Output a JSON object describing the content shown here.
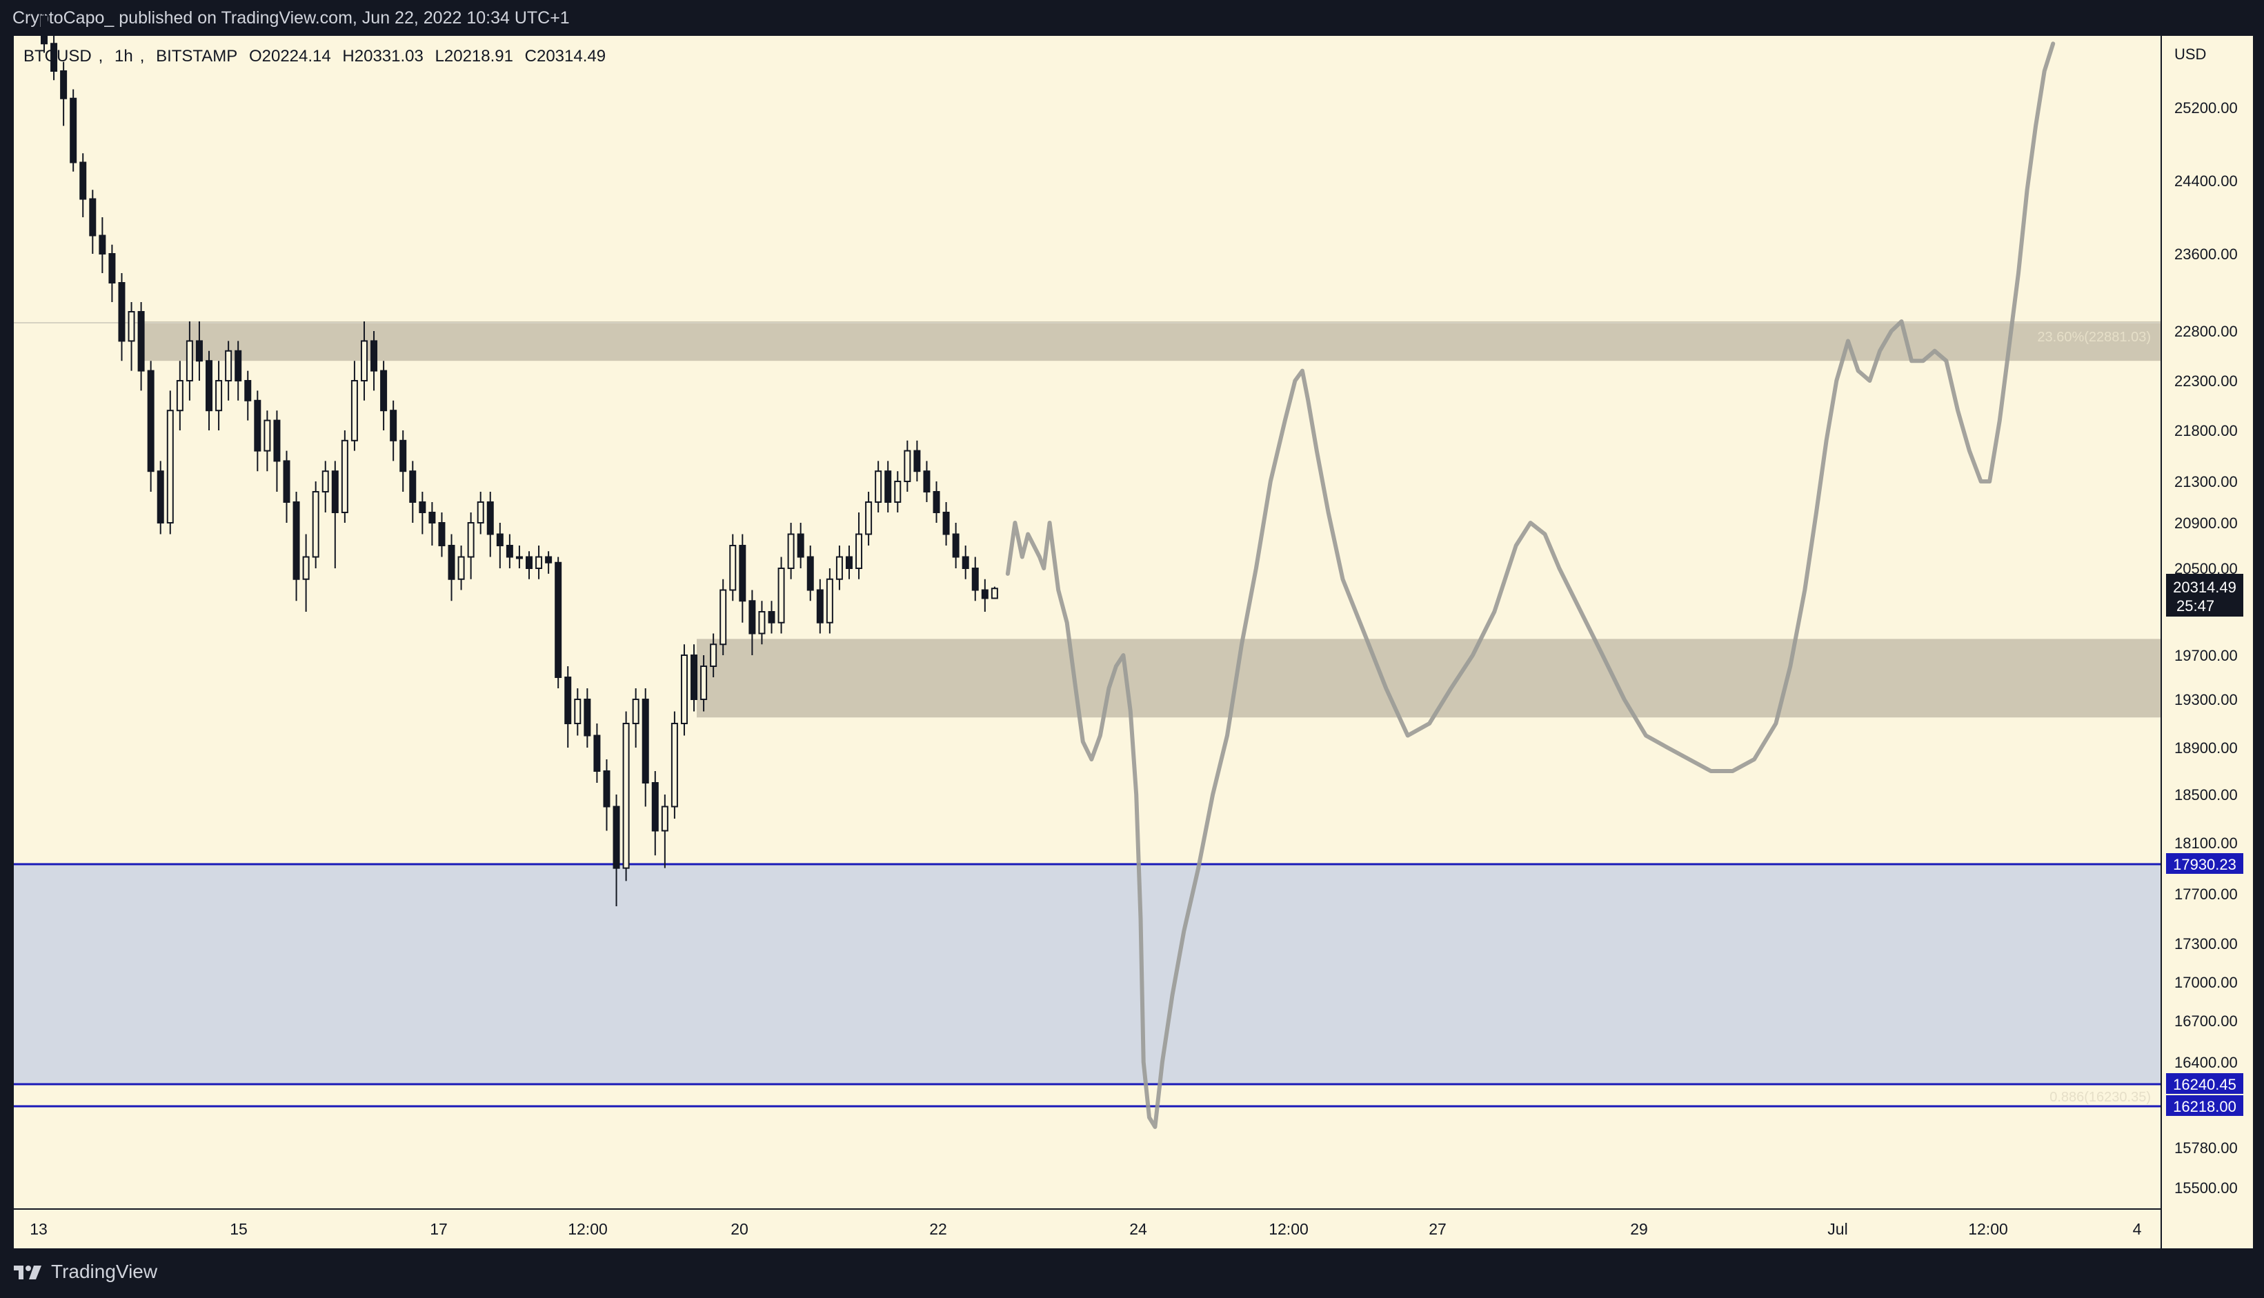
{
  "header": {
    "publisher": "CryptoCapo_",
    "published_text": "published on TradingView.com, Jun 22, 2022 10:34 UTC+1"
  },
  "footer": {
    "brand": "TradingView",
    "logo_icon": "tradingview-logo-icon"
  },
  "colors": {
    "background": "#fcf6de",
    "zone_grey": "#cbc4b0",
    "support_blue": "#d3d9e3",
    "blue_line": "#1a1ab8",
    "candle": "#131722",
    "path": "#9a9a96"
  },
  "chart_data": {
    "type": "candlestick",
    "symbol": "BTCUSD",
    "interval": "1h",
    "exchange": "BITSTAMP",
    "ohlc": {
      "open": "O20224.14",
      "high": "H20331.03",
      "low": "L20218.91",
      "close": "C20314.49"
    },
    "currency": "USD",
    "y_ticks": [
      "25200.00",
      "24400.00",
      "23600.00",
      "22800.00",
      "22300.00",
      "21800.00",
      "21300.00",
      "20900.00",
      "20500.00",
      "19700.00",
      "19300.00",
      "18900.00",
      "18500.00",
      "18100.00",
      "17700.00",
      "17300.00",
      "17000.00",
      "16700.00",
      "16400.00",
      "15780.00",
      "15500.00"
    ],
    "x_ticks": [
      "13",
      "15",
      "17",
      "12:00",
      "20",
      "22",
      "24",
      "12:00",
      "27",
      "29",
      "Jul",
      "12:00",
      "4"
    ],
    "last_price": {
      "value": "20314.49",
      "countdown": "25:47"
    },
    "price_badges": [
      "17930.23",
      "16240.45",
      "16218.00"
    ],
    "horizontal_lines": [
      17930.23,
      16240.45,
      16218.0
    ],
    "zones": [
      {
        "name": "resistance-zone",
        "from": 22500,
        "to": 22900
      },
      {
        "name": "mid-zone",
        "from": 19150,
        "to": 19850
      },
      {
        "name": "support-zone",
        "from": 16240.45,
        "to": 17930.23
      }
    ],
    "fib_labels": [
      "23.60%(22881.03)",
      "0.886(16230.35)"
    ],
    "candles": [
      [
        0,
        26200,
        25900,
        26250,
        25800
      ],
      [
        1,
        25900,
        25600,
        26000,
        25500
      ],
      [
        2,
        25600,
        25300,
        25700,
        25000
      ],
      [
        3,
        25300,
        24600,
        25400,
        24500
      ],
      [
        4,
        24600,
        24200,
        24700,
        24000
      ],
      [
        5,
        24200,
        23800,
        24300,
        23600
      ],
      [
        6,
        23800,
        23600,
        24000,
        23400
      ],
      [
        7,
        23600,
        23300,
        23700,
        23100
      ],
      [
        8,
        23300,
        22700,
        23400,
        22500
      ],
      [
        9,
        22700,
        23000,
        23100,
        22400
      ],
      [
        10,
        23000,
        22400,
        23100,
        22200
      ],
      [
        11,
        22400,
        21400,
        22500,
        21200
      ],
      [
        12,
        21400,
        20900,
        21500,
        20800
      ],
      [
        13,
        20900,
        22000,
        22200,
        20800
      ],
      [
        14,
        22000,
        22300,
        22500,
        21800
      ],
      [
        15,
        22300,
        22700,
        22900,
        22100
      ],
      [
        16,
        22700,
        22500,
        22900,
        22300
      ],
      [
        17,
        22500,
        22000,
        22600,
        21800
      ],
      [
        18,
        22000,
        22300,
        22500,
        21800
      ],
      [
        19,
        22300,
        22600,
        22700,
        22100
      ],
      [
        20,
        22600,
        22300,
        22700,
        22100
      ],
      [
        21,
        22300,
        22100,
        22400,
        21900
      ],
      [
        22,
        22100,
        21600,
        22200,
        21400
      ],
      [
        23,
        21600,
        21900,
        22000,
        21400
      ],
      [
        24,
        21900,
        21500,
        22000,
        21200
      ],
      [
        25,
        21500,
        21100,
        21600,
        20900
      ],
      [
        26,
        21100,
        20400,
        21200,
        20200
      ],
      [
        27,
        20400,
        20600,
        20800,
        20100
      ],
      [
        28,
        20600,
        21200,
        21300,
        20500
      ],
      [
        29,
        21200,
        21400,
        21500,
        21000
      ],
      [
        30,
        21400,
        21000,
        21500,
        20500
      ],
      [
        31,
        21000,
        21700,
        21800,
        20900
      ],
      [
        32,
        21700,
        22300,
        22500,
        21600
      ],
      [
        33,
        22300,
        22700,
        22900,
        22100
      ],
      [
        34,
        22700,
        22400,
        22800,
        22200
      ],
      [
        35,
        22400,
        22000,
        22500,
        21800
      ],
      [
        36,
        22000,
        21700,
        22100,
        21500
      ],
      [
        37,
        21700,
        21400,
        21800,
        21200
      ],
      [
        38,
        21400,
        21100,
        21500,
        20900
      ],
      [
        39,
        21100,
        21000,
        21200,
        20800
      ],
      [
        40,
        21000,
        20900,
        21100,
        20700
      ],
      [
        41,
        20900,
        20700,
        21000,
        20600
      ],
      [
        42,
        20700,
        20400,
        20800,
        20200
      ],
      [
        43,
        20400,
        20600,
        20700,
        20300
      ],
      [
        44,
        20600,
        20900,
        21000,
        20400
      ],
      [
        45,
        20900,
        21100,
        21200,
        20800
      ],
      [
        46,
        21100,
        20800,
        21200,
        20600
      ],
      [
        47,
        20800,
        20700,
        20900,
        20500
      ],
      [
        48,
        20700,
        20600,
        20800,
        20500
      ],
      [
        49,
        20600,
        20600,
        20700,
        20500
      ],
      [
        50,
        20600,
        20500,
        20650,
        20400
      ],
      [
        51,
        20500,
        20600,
        20700,
        20400
      ],
      [
        52,
        20600,
        20550,
        20650,
        20450
      ],
      [
        53,
        20550,
        19500,
        20600,
        19400
      ],
      [
        54,
        19500,
        19100,
        19600,
        18900
      ],
      [
        55,
        19100,
        19300,
        19400,
        19000
      ],
      [
        56,
        19300,
        19000,
        19400,
        18900
      ],
      [
        57,
        19000,
        18700,
        19100,
        18600
      ],
      [
        58,
        18700,
        18400,
        18800,
        18200
      ],
      [
        59,
        18400,
        17900,
        18500,
        17600
      ],
      [
        60,
        17900,
        19100,
        19200,
        17800
      ],
      [
        61,
        19100,
        19300,
        19400,
        18900
      ],
      [
        62,
        19300,
        18600,
        19400,
        18400
      ],
      [
        63,
        18600,
        18200,
        18700,
        18000
      ],
      [
        64,
        18200,
        18400,
        18500,
        17900
      ],
      [
        65,
        18400,
        19100,
        19200,
        18300
      ],
      [
        66,
        19100,
        19700,
        19800,
        19000
      ],
      [
        67,
        19700,
        19300,
        19800,
        19200
      ],
      [
        68,
        19300,
        19600,
        19700,
        19200
      ],
      [
        69,
        19600,
        19800,
        19900,
        19500
      ],
      [
        70,
        19800,
        20300,
        20400,
        19700
      ],
      [
        71,
        20300,
        20700,
        20800,
        20200
      ],
      [
        72,
        20700,
        20200,
        20800,
        20000
      ],
      [
        73,
        20200,
        19900,
        20300,
        19700
      ],
      [
        74,
        19900,
        20100,
        20200,
        19800
      ],
      [
        75,
        20100,
        20000,
        20200,
        19900
      ],
      [
        76,
        20000,
        20500,
        20600,
        19900
      ],
      [
        77,
        20500,
        20800,
        20900,
        20400
      ],
      [
        78,
        20800,
        20600,
        20900,
        20500
      ],
      [
        79,
        20600,
        20300,
        20700,
        20200
      ],
      [
        80,
        20300,
        20000,
        20400,
        19900
      ],
      [
        81,
        20000,
        20400,
        20500,
        19900
      ],
      [
        82,
        20400,
        20600,
        20700,
        20300
      ],
      [
        83,
        20600,
        20500,
        20700,
        20400
      ],
      [
        84,
        20500,
        20800,
        21000,
        20400
      ],
      [
        85,
        20800,
        21100,
        21200,
        20700
      ],
      [
        86,
        21100,
        21400,
        21500,
        21000
      ],
      [
        87,
        21400,
        21100,
        21500,
        21000
      ],
      [
        88,
        21100,
        21300,
        21400,
        21000
      ],
      [
        89,
        21300,
        21600,
        21700,
        21200
      ],
      [
        90,
        21600,
        21400,
        21700,
        21300
      ],
      [
        91,
        21400,
        21200,
        21500,
        21100
      ],
      [
        92,
        21200,
        21000,
        21300,
        20900
      ],
      [
        93,
        21000,
        20800,
        21100,
        20700
      ],
      [
        94,
        20800,
        20600,
        20900,
        20500
      ],
      [
        95,
        20600,
        20500,
        20700,
        20400
      ],
      [
        96,
        20500,
        20300,
        20600,
        20200
      ],
      [
        97,
        20300,
        20224,
        20400,
        20100
      ],
      [
        98,
        20224.14,
        20314.49,
        20331.03,
        20218.91
      ]
    ],
    "projection": [
      [
        698,
        20450
      ],
      [
        703,
        20900
      ],
      [
        708,
        20600
      ],
      [
        712,
        20800
      ],
      [
        716,
        20700
      ],
      [
        720,
        20600
      ],
      [
        723,
        20500
      ],
      [
        727,
        20900
      ],
      [
        733,
        20300
      ],
      [
        739,
        20000
      ],
      [
        745,
        19400
      ],
      [
        750,
        18950
      ],
      [
        756,
        18800
      ],
      [
        762,
        19000
      ],
      [
        768,
        19400
      ],
      [
        773,
        19600
      ],
      [
        778,
        19700
      ],
      [
        783,
        19200
      ],
      [
        787,
        18500
      ],
      [
        790,
        17500
      ],
      [
        792,
        16400
      ],
      [
        796,
        16100
      ],
      [
        800,
        16000
      ],
      [
        805,
        16400
      ],
      [
        812,
        16900
      ],
      [
        820,
        17400
      ],
      [
        830,
        17900
      ],
      [
        840,
        18500
      ],
      [
        850,
        19000
      ],
      [
        860,
        19800
      ],
      [
        870,
        20500
      ],
      [
        880,
        21300
      ],
      [
        890,
        21900
      ],
      [
        897,
        22300
      ],
      [
        902,
        22400
      ],
      [
        906,
        22100
      ],
      [
        912,
        21600
      ],
      [
        920,
        21000
      ],
      [
        930,
        20400
      ],
      [
        945,
        19900
      ],
      [
        960,
        19400
      ],
      [
        975,
        19000
      ],
      [
        990,
        19100
      ],
      [
        1005,
        19400
      ],
      [
        1020,
        19700
      ],
      [
        1035,
        20100
      ],
      [
        1050,
        20700
      ],
      [
        1060,
        20900
      ],
      [
        1070,
        20800
      ],
      [
        1080,
        20500
      ],
      [
        1095,
        20100
      ],
      [
        1110,
        19700
      ],
      [
        1125,
        19300
      ],
      [
        1140,
        19000
      ],
      [
        1155,
        18900
      ],
      [
        1170,
        18800
      ],
      [
        1185,
        18700
      ],
      [
        1200,
        18700
      ],
      [
        1215,
        18800
      ],
      [
        1230,
        19100
      ],
      [
        1240,
        19600
      ],
      [
        1250,
        20300
      ],
      [
        1258,
        21000
      ],
      [
        1265,
        21700
      ],
      [
        1272,
        22300
      ],
      [
        1280,
        22700
      ],
      [
        1287,
        22400
      ],
      [
        1295,
        22300
      ],
      [
        1302,
        22600
      ],
      [
        1310,
        22800
      ],
      [
        1317,
        22900
      ],
      [
        1324,
        22500
      ],
      [
        1332,
        22500
      ],
      [
        1340,
        22600
      ],
      [
        1348,
        22500
      ],
      [
        1356,
        22000
      ],
      [
        1364,
        21600
      ],
      [
        1372,
        21300
      ],
      [
        1378,
        21300
      ],
      [
        1385,
        21900
      ],
      [
        1392,
        22700
      ],
      [
        1398,
        23400
      ],
      [
        1404,
        24300
      ],
      [
        1410,
        25000
      ],
      [
        1416,
        25600
      ],
      [
        1422,
        25900
      ]
    ]
  }
}
